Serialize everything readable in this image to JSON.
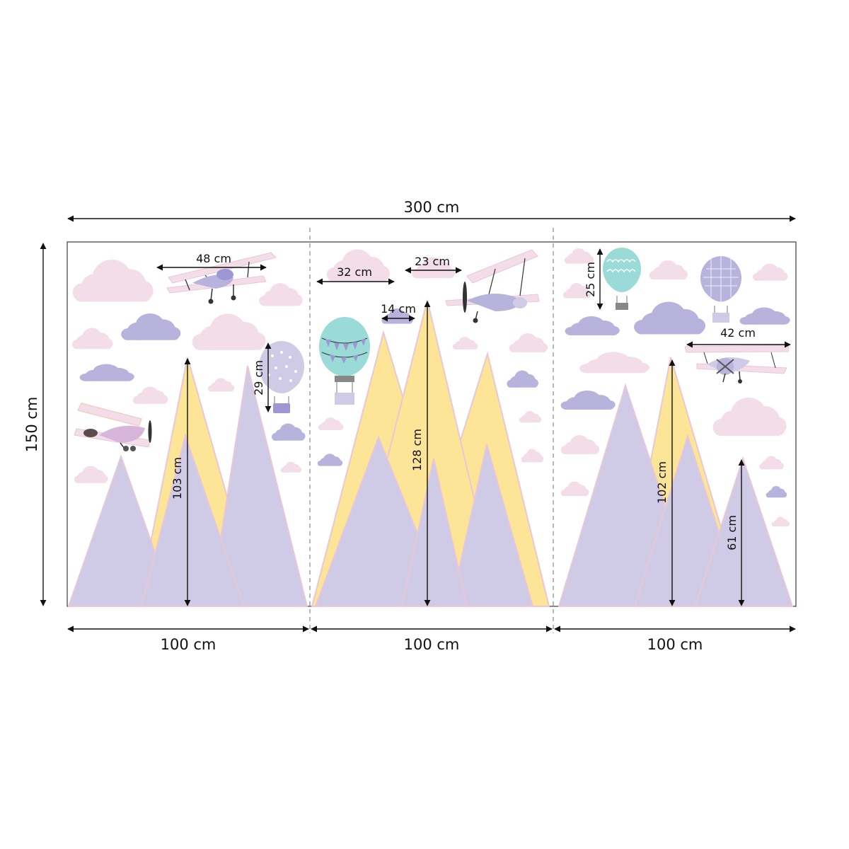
{
  "dimensions": {
    "total_width": "300 cm",
    "total_height": "150 cm",
    "panels": [
      "100 cm",
      "100 cm",
      "100 cm"
    ]
  },
  "measurements": {
    "plane_1_width": "48 cm",
    "balloon_1_height": "29 cm",
    "mountain_1_height": "103 cm",
    "cloud_width": "32 cm",
    "plane_2_width": "23 cm",
    "small_cloud_width": "14 cm",
    "mountain_2_height": "128 cm",
    "balloon_3_height": "25 cm",
    "plane_3_width": "42 cm",
    "mountain_3_height": "102 cm",
    "mountain_4_height": "61 cm"
  },
  "colors": {
    "lavender": "#cfcbe7",
    "yellow": "#fde597",
    "pink_cloud": "#f3dde8",
    "purple_cloud": "#b8b3dc",
    "teal": "#9adbd8",
    "outline": "#e8c7d7",
    "frame": "#555555",
    "dashed": "#888888"
  },
  "icons": [
    "cloud-icon",
    "airplane-icon",
    "hot-air-balloon-icon",
    "mountain-icon",
    "double-arrow-icon"
  ]
}
